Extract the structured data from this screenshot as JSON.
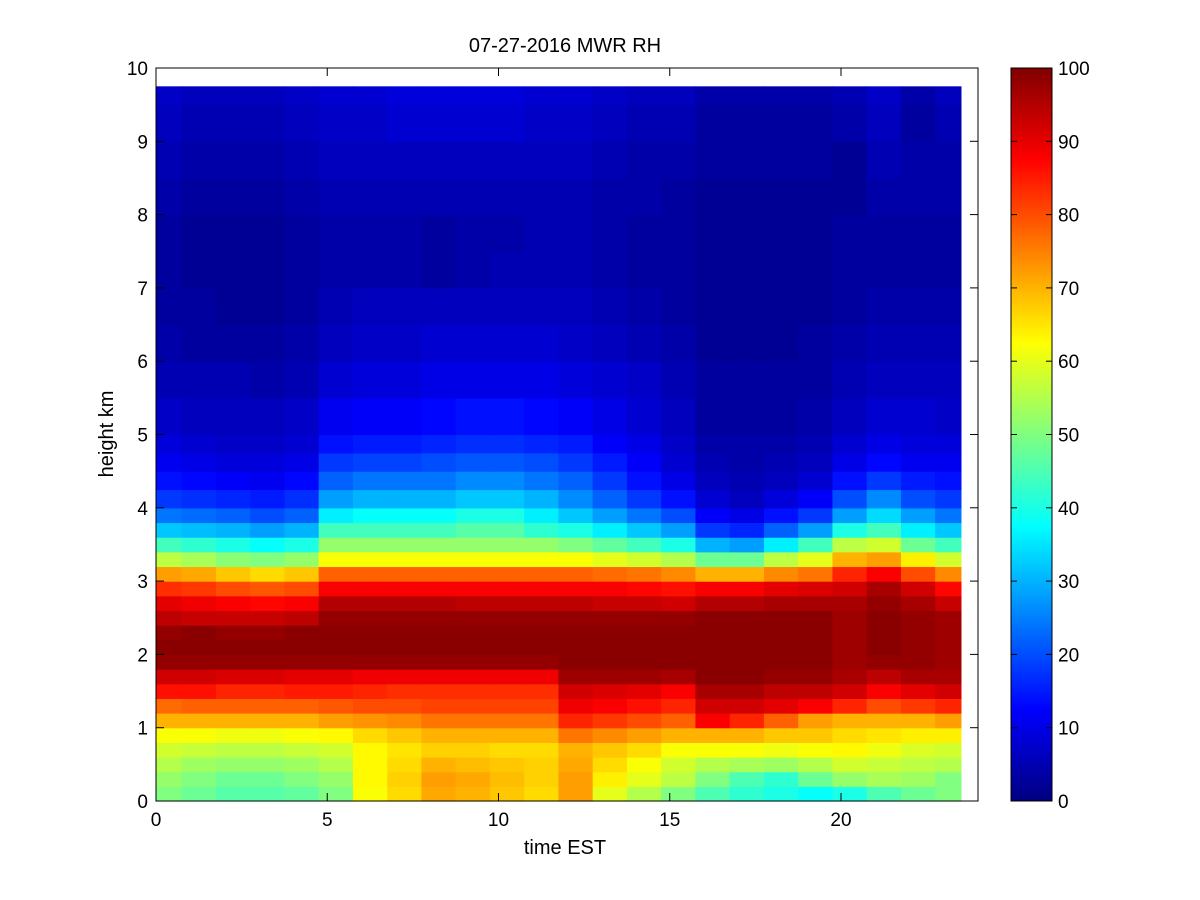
{
  "chart_data": {
    "type": "heatmap",
    "title": "07-27-2016 MWR RH",
    "xlabel": "time EST",
    "ylabel": "height km",
    "xlim": [
      0,
      24
    ],
    "ylim": [
      0,
      10
    ],
    "xticks": [
      0,
      5,
      10,
      15,
      20
    ],
    "yticks": [
      0,
      1,
      2,
      3,
      4,
      5,
      6,
      7,
      8,
      9,
      10
    ],
    "colorbar": {
      "colormap": "jet",
      "range": [
        0,
        100
      ],
      "ticks": [
        0,
        10,
        20,
        30,
        40,
        50,
        60,
        70,
        80,
        90,
        100
      ]
    },
    "data_extent": {
      "x": [
        0,
        23.5
      ],
      "y": [
        0,
        9.75
      ]
    },
    "x_centers": [
      0.25,
      1.25,
      2.25,
      3.25,
      4.25,
      5.25,
      6.25,
      7.25,
      8.25,
      9.25,
      10.25,
      11.25,
      12.25,
      13.25,
      14.25,
      15.25,
      16.25,
      17.25,
      18.25,
      19.25,
      20.25,
      21.25,
      22.25,
      23.25
    ],
    "y_levels_km": [
      0.0,
      0.2,
      0.4,
      0.6,
      0.8,
      1.0,
      1.2,
      1.4,
      1.6,
      1.8,
      2.0,
      2.2,
      2.4,
      2.6,
      2.8,
      3.0,
      3.2,
      3.4,
      3.6,
      3.8,
      4.0,
      4.25,
      4.5,
      4.75,
      5.0,
      5.5,
      6.0,
      6.5,
      7.0,
      7.5,
      8.0,
      8.5,
      9.0,
      9.5
    ],
    "rh_percent": [
      [
        50,
        48,
        46,
        46,
        47,
        50,
        62,
        66,
        71,
        70,
        68,
        66,
        72,
        60,
        55,
        50,
        45,
        42,
        40,
        38,
        40,
        45,
        48,
        50
      ],
      [
        52,
        50,
        48,
        48,
        50,
        52,
        63,
        67,
        72,
        71,
        69,
        67,
        72,
        64,
        60,
        56,
        50,
        45,
        42,
        48,
        52,
        54,
        53,
        50
      ],
      [
        55,
        53,
        52,
        52,
        53,
        55,
        63,
        66,
        70,
        69,
        68,
        67,
        71,
        66,
        62,
        58,
        55,
        54,
        53,
        55,
        58,
        57,
        56,
        55
      ],
      [
        58,
        57,
        56,
        56,
        57,
        58,
        63,
        65,
        67,
        67,
        66,
        66,
        70,
        68,
        66,
        62,
        62,
        62,
        61,
        62,
        63,
        61,
        59,
        58
      ],
      [
        62,
        62,
        61,
        61,
        62,
        63,
        66,
        68,
        70,
        70,
        70,
        70,
        76,
        74,
        72,
        70,
        70,
        70,
        68,
        68,
        66,
        65,
        64,
        64
      ],
      [
        70,
        70,
        70,
        70,
        70,
        72,
        73,
        74,
        76,
        76,
        76,
        76,
        84,
        82,
        80,
        78,
        88,
        84,
        78,
        72,
        70,
        70,
        70,
        72
      ],
      [
        77,
        78,
        78,
        78,
        78,
        79,
        80,
        80,
        81,
        81,
        81,
        81,
        89,
        88,
        86,
        84,
        92,
        92,
        90,
        88,
        84,
        80,
        82,
        84
      ],
      [
        86,
        86,
        84,
        84,
        85,
        85,
        84,
        83,
        83,
        83,
        83,
        83,
        92,
        91,
        90,
        88,
        96,
        96,
        94,
        94,
        92,
        88,
        90,
        92
      ],
      [
        92,
        92,
        91,
        91,
        90,
        90,
        89,
        89,
        89,
        89,
        89,
        89,
        97,
        97,
        97,
        96,
        99,
        99,
        98,
        98,
        96,
        94,
        96,
        96
      ],
      [
        98,
        98,
        98,
        98,
        98,
        98,
        98,
        98,
        98,
        98,
        98,
        98,
        99,
        99,
        99,
        99,
        99,
        99,
        99,
        99,
        97,
        98,
        98,
        97
      ],
      [
        99,
        99,
        99,
        99,
        99,
        99,
        99,
        99,
        99,
        99,
        99,
        99,
        99,
        99,
        99,
        99,
        99,
        99,
        99,
        99,
        97,
        99,
        98,
        97
      ],
      [
        98,
        99,
        98,
        98,
        99,
        99,
        99,
        99,
        99,
        99,
        99,
        99,
        99,
        99,
        99,
        99,
        99,
        99,
        99,
        99,
        97,
        99,
        98,
        97
      ],
      [
        94,
        93,
        93,
        93,
        94,
        98,
        98,
        98,
        98,
        98,
        98,
        98,
        98,
        98,
        98,
        98,
        99,
        99,
        99,
        99,
        97,
        99,
        98,
        97
      ],
      [
        90,
        89,
        88,
        87,
        88,
        95,
        95,
        95,
        95,
        94,
        94,
        94,
        94,
        93,
        93,
        92,
        95,
        95,
        96,
        96,
        96,
        98,
        96,
        93
      ],
      [
        83,
        82,
        80,
        79,
        80,
        88,
        88,
        88,
        88,
        88,
        88,
        88,
        88,
        88,
        87,
        86,
        88,
        88,
        90,
        91,
        92,
        96,
        92,
        87
      ],
      [
        72,
        71,
        68,
        66,
        68,
        78,
        78,
        78,
        78,
        78,
        78,
        78,
        78,
        77,
        76,
        74,
        70,
        70,
        74,
        76,
        84,
        88,
        80,
        74
      ],
      [
        56,
        54,
        51,
        50,
        52,
        62,
        62,
        62,
        62,
        62,
        62,
        62,
        62,
        60,
        58,
        55,
        48,
        48,
        56,
        60,
        70,
        72,
        64,
        58
      ],
      [
        44,
        42,
        40,
        38,
        40,
        52,
        52,
        52,
        52,
        52,
        52,
        52,
        50,
        47,
        44,
        40,
        30,
        28,
        36,
        44,
        56,
        58,
        48,
        44
      ],
      [
        32,
        31,
        30,
        28,
        30,
        44,
        44,
        44,
        44,
        46,
        46,
        42,
        40,
        36,
        32,
        28,
        18,
        16,
        22,
        28,
        40,
        44,
        36,
        32
      ],
      [
        24,
        23,
        22,
        20,
        22,
        36,
        38,
        38,
        38,
        40,
        40,
        36,
        32,
        28,
        24,
        20,
        12,
        10,
        14,
        18,
        28,
        34,
        28,
        24
      ],
      [
        18,
        17,
        16,
        15,
        17,
        28,
        30,
        30,
        30,
        32,
        32,
        30,
        26,
        22,
        18,
        14,
        8,
        6,
        9,
        12,
        20,
        26,
        20,
        18
      ],
      [
        14,
        13,
        12,
        11,
        13,
        22,
        24,
        24,
        24,
        26,
        26,
        24,
        22,
        18,
        14,
        10,
        6,
        5,
        6,
        8,
        14,
        18,
        15,
        14
      ],
      [
        11,
        10,
        9,
        9,
        10,
        18,
        19,
        19,
        20,
        21,
        21,
        20,
        18,
        15,
        12,
        8,
        5,
        4,
        5,
        6,
        10,
        13,
        11,
        11
      ],
      [
        9,
        8,
        7,
        7,
        8,
        14,
        15,
        15,
        16,
        17,
        17,
        16,
        15,
        12,
        10,
        7,
        4,
        4,
        4,
        5,
        8,
        10,
        9,
        9
      ],
      [
        7,
        6,
        6,
        6,
        7,
        11,
        12,
        12,
        13,
        14,
        14,
        13,
        12,
        10,
        8,
        6,
        3,
        3,
        3,
        4,
        6,
        8,
        8,
        7
      ],
      [
        5,
        5,
        5,
        4,
        5,
        8,
        9,
        9,
        10,
        10,
        10,
        10,
        9,
        8,
        7,
        5,
        3,
        3,
        3,
        3,
        5,
        6,
        6,
        6
      ],
      [
        4,
        3,
        3,
        3,
        4,
        6,
        7,
        7,
        8,
        8,
        8,
        8,
        7,
        6,
        5,
        4,
        2,
        2,
        2,
        3,
        4,
        5,
        5,
        5
      ],
      [
        3,
        3,
        2,
        2,
        3,
        5,
        6,
        6,
        6,
        6,
        6,
        6,
        6,
        5,
        4,
        3,
        2,
        2,
        2,
        2,
        3,
        4,
        4,
        4
      ],
      [
        3,
        2,
        2,
        2,
        3,
        4,
        4,
        4,
        3,
        4,
        5,
        5,
        5,
        4,
        3,
        3,
        2,
        2,
        2,
        2,
        3,
        3,
        3,
        3
      ],
      [
        3,
        2,
        2,
        2,
        3,
        4,
        4,
        4,
        3,
        4,
        4,
        5,
        5,
        4,
        3,
        3,
        2,
        2,
        2,
        2,
        3,
        3,
        3,
        3
      ],
      [
        4,
        3,
        3,
        3,
        4,
        5,
        5,
        5,
        5,
        5,
        5,
        5,
        5,
        4,
        4,
        3,
        2,
        2,
        2,
        2,
        2,
        4,
        4,
        4
      ],
      [
        5,
        4,
        4,
        4,
        5,
        6,
        6,
        6,
        6,
        6,
        6,
        6,
        6,
        5,
        4,
        4,
        3,
        3,
        3,
        3,
        2,
        5,
        4,
        4
      ],
      [
        6,
        5,
        5,
        5,
        6,
        7,
        7,
        8,
        8,
        8,
        8,
        7,
        7,
        6,
        5,
        5,
        3,
        3,
        3,
        3,
        4,
        6,
        3,
        5
      ],
      [
        7,
        6,
        6,
        6,
        7,
        8,
        8,
        9,
        9,
        9,
        9,
        8,
        8,
        7,
        6,
        6,
        4,
        4,
        4,
        4,
        5,
        7,
        4,
        6
      ]
    ]
  }
}
